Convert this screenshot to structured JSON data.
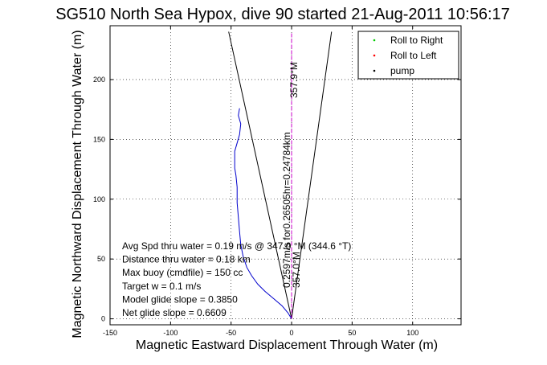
{
  "chart_data": {
    "type": "line",
    "title": "SG510 North Sea Hypox, dive 90 started 21-Aug-2011 10:56:17",
    "xlabel": "Magnetic Eastward Displacement Through Water (m)",
    "ylabel": "Magnetic Northward Displacement Through Water (m)",
    "xlim": [
      -150,
      140
    ],
    "ylim": [
      -5,
      245
    ],
    "xticks": [
      -150,
      -100,
      -50,
      0,
      50,
      100
    ],
    "yticks": [
      0,
      50,
      100,
      150,
      200
    ],
    "grid": true,
    "legend_position": "top-right",
    "legend": [
      {
        "name": "Roll to Right",
        "color": "#00cc00",
        "marker": "."
      },
      {
        "name": "Roll to Left",
        "color": "#ff0000",
        "marker": "."
      },
      {
        "name": "pump",
        "color": "#000000",
        "marker": "."
      }
    ],
    "series": [
      {
        "color": "#0000cc",
        "x": [
          0,
          -3,
          -8,
          -15,
          -22,
          -28,
          -33,
          -37,
          -40,
          -42,
          -43,
          -44,
          -45,
          -45,
          -46,
          -47,
          -47,
          -45,
          -43,
          -42,
          -44,
          -43
        ],
        "y": [
          0,
          5,
          11,
          17,
          23,
          29,
          36,
          43,
          52,
          62,
          73,
          85,
          97,
          110,
          120,
          126,
          140,
          147,
          154,
          163,
          170,
          176
        ]
      },
      {
        "color": "#cc00cc",
        "x": [
          0,
          0,
          0,
          0
        ],
        "y": [
          0,
          80,
          160,
          240
        ]
      }
    ],
    "lines": [
      {
        "color": "#000000",
        "x": [
          0,
          -52
        ],
        "y": [
          0,
          240
        ]
      },
      {
        "color": "#000000",
        "x": [
          0,
          33
        ],
        "y": [
          0,
          240
        ]
      }
    ],
    "annotations": [
      "Avg Spd thru water = 0.19 m/s @ 347.0  °M (344.6 °T)",
      "Distance thru water = 0.18 km",
      "Max buoy (cmdfile) = 150 cc",
      "Target w = 0.1 m/s",
      "Model glide slope = 0.3850",
      "Net glide slope = 0.6609"
    ],
    "rotated_labels": [
      {
        "text": "0.2597m/s for0.26505hr=0.24784km"
      },
      {
        "text": "357.9°M"
      },
      {
        "text": "357.0°M"
      }
    ]
  }
}
